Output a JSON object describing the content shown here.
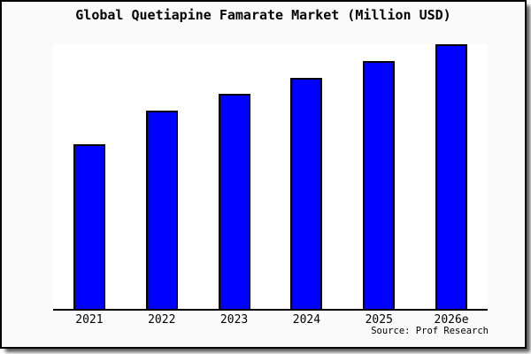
{
  "title": "Global Quetiapine Famarate Market (Million USD)",
  "source_credit": "Source: Prof Research",
  "colors": {
    "bar_fill": "#0000ff",
    "bar_border": "#000000",
    "axis": "#000000",
    "card_background": "#fafafa",
    "plot_background": "#ffffff"
  },
  "chart_data": {
    "type": "bar",
    "title": "Global Quetiapine Famarate Market (Million USD)",
    "categories": [
      "2021",
      "2022",
      "2023",
      "2024",
      "2025",
      "2026e"
    ],
    "values": [
      500,
      600,
      650,
      700,
      750,
      800
    ],
    "xlabel": "",
    "ylabel": "",
    "ylim": [
      0,
      800
    ],
    "y_axis_labeled": false,
    "grid": false,
    "legend": "none",
    "note": "No y-axis tick labels are shown in the chart; values are estimated from relative bar heights (tallest bar = plot top = 800)."
  }
}
